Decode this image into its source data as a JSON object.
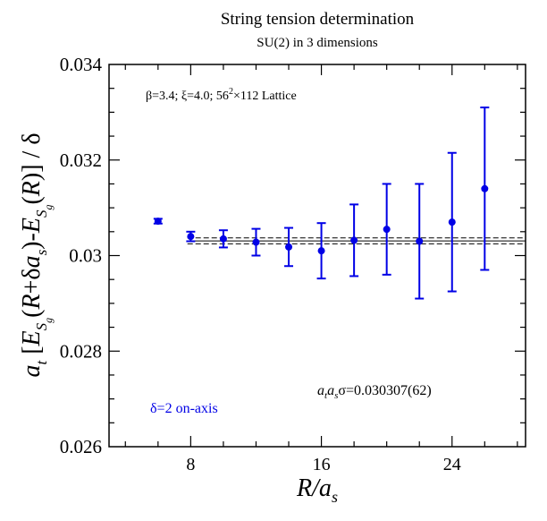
{
  "chart_data": {
    "type": "scatter",
    "title": "String tension determination",
    "subtitle": "SU(2) in 3 dimensions",
    "xlabel": "R/a",
    "xlabel_sub": "s",
    "ylabel": "a_t [E_Sg(R+δa_s) - E_Sg(R)] / δ",
    "xlim": [
      3,
      28.5
    ],
    "ylim": [
      0.026,
      0.034
    ],
    "x_major_ticks": [
      8,
      16,
      24
    ],
    "x_tick_labels": [
      "8",
      "16",
      "24"
    ],
    "y_major_ticks": [
      0.026,
      0.028,
      0.03,
      0.032,
      0.034
    ],
    "y_tick_labels": [
      "0.026",
      "0.028",
      "0.03",
      "0.032",
      "0.034"
    ],
    "grid": false,
    "series": [
      {
        "name": "δ=2 on-axis",
        "color": "#0000e6",
        "x": [
          6,
          8,
          10,
          12,
          14,
          16,
          18,
          20,
          22,
          24,
          26
        ],
        "y": [
          0.03072,
          0.0304,
          0.03035,
          0.03028,
          0.03018,
          0.0301,
          0.03032,
          0.03055,
          0.0303,
          0.0307,
          0.0314
        ],
        "yerr_low": [
          5e-05,
          0.0001,
          0.00018,
          0.00028,
          0.0004,
          0.00058,
          0.00075,
          0.00095,
          0.0012,
          0.00145,
          0.0017
        ],
        "yerr_high": [
          5e-05,
          0.0001,
          0.00018,
          0.00028,
          0.0004,
          0.00058,
          0.00075,
          0.00095,
          0.0012,
          0.00145,
          0.0017
        ]
      }
    ],
    "fit": {
      "value": 0.030307,
      "error": 6.2e-05,
      "x_range": [
        7.8,
        28.5
      ]
    },
    "annotations": {
      "lattice": "β=3.4;  ξ=4.0; 56²×112 Lattice",
      "fit_label": "a_t a_s σ=0.030307(62)",
      "legend": "δ=2 on-axis"
    }
  }
}
